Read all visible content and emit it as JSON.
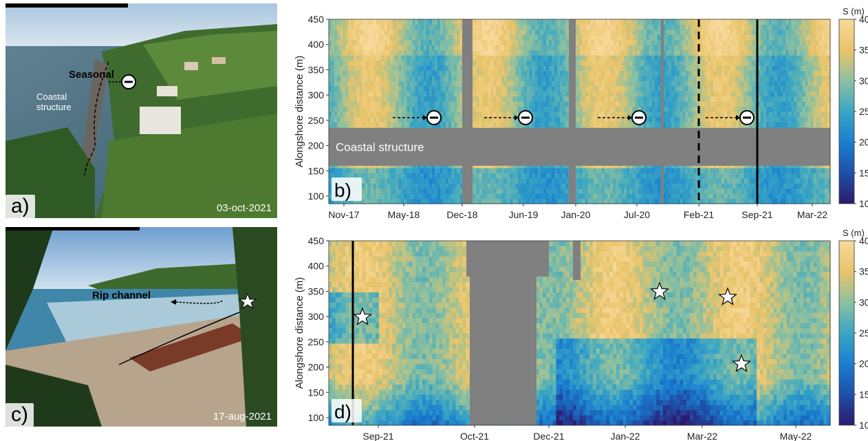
{
  "panel_a": {
    "label": "a)",
    "date": "03-oct-2021",
    "annotation_seasonal": "Seasonal",
    "annotation_structure_line1": "Coastal",
    "annotation_structure_line2": "structure"
  },
  "panel_c": {
    "label": "c)",
    "date": "17-aug-2021",
    "annotation_rip": "Rip channel"
  },
  "panel_b": {
    "label": "b)",
    "structure_label": "Coastal structure"
  },
  "panel_d": {
    "label": "d)"
  },
  "colorbar": {
    "title": "S (m)",
    "ticks": [
      "40",
      "35",
      "30",
      "25",
      "20",
      "15",
      "10"
    ],
    "colors": [
      "#2d1a6e",
      "#1f4fa8",
      "#1a7fd0",
      "#3aa6c4",
      "#8cc0a0",
      "#e9c46a",
      "#f7d99b"
    ]
  },
  "chart_data": [
    {
      "type": "heatmap",
      "panel": "b",
      "ylabel": "Alongshore distance (m)",
      "colorbar_label": "S (m)",
      "color_range": [
        10,
        40
      ],
      "xticks": [
        "Nov-17",
        "May-18",
        "Dec-18",
        "Jun-19",
        "Jan-20",
        "Jul-20",
        "Feb-21",
        "Sep-21",
        "Mar-22"
      ],
      "yticks": [
        100,
        150,
        200,
        250,
        300,
        350,
        400,
        450
      ],
      "ylim": [
        85,
        450
      ],
      "masked_band": {
        "label": "Coastal structure",
        "from": 160,
        "to": 235
      },
      "gaps": [
        "Dec-18",
        "Jan-20"
      ],
      "vertical_lines": [
        {
          "at": "Feb-21",
          "style": "dashed"
        },
        {
          "at": "Sep-21",
          "style": "solid"
        }
      ],
      "seasonal_minima": [
        "~Sep-18",
        "~Sep-19",
        "~Sep-20",
        "~Jul-21"
      ]
    },
    {
      "type": "heatmap",
      "panel": "d",
      "ylabel": "Alongshore distance (m)",
      "colorbar_label": "S (m)",
      "color_range": [
        10,
        40
      ],
      "xticks": [
        "Sep-21",
        "Oct-21",
        "Dec-21",
        "Jan-22",
        "Mar-22",
        "May-22"
      ],
      "yticks": [
        100,
        150,
        200,
        250,
        300,
        350,
        400,
        450
      ],
      "ylim": [
        85,
        450
      ],
      "vertical_lines": [
        {
          "at": "Aug-21",
          "style": "solid"
        }
      ],
      "rip_channels": [
        {
          "x": "Aug-21",
          "y": 300
        },
        {
          "x": "Feb-22",
          "y": 350
        },
        {
          "x": "Mar-22",
          "y": 340
        },
        {
          "x": "Mar-22",
          "y": 205
        }
      ]
    }
  ]
}
